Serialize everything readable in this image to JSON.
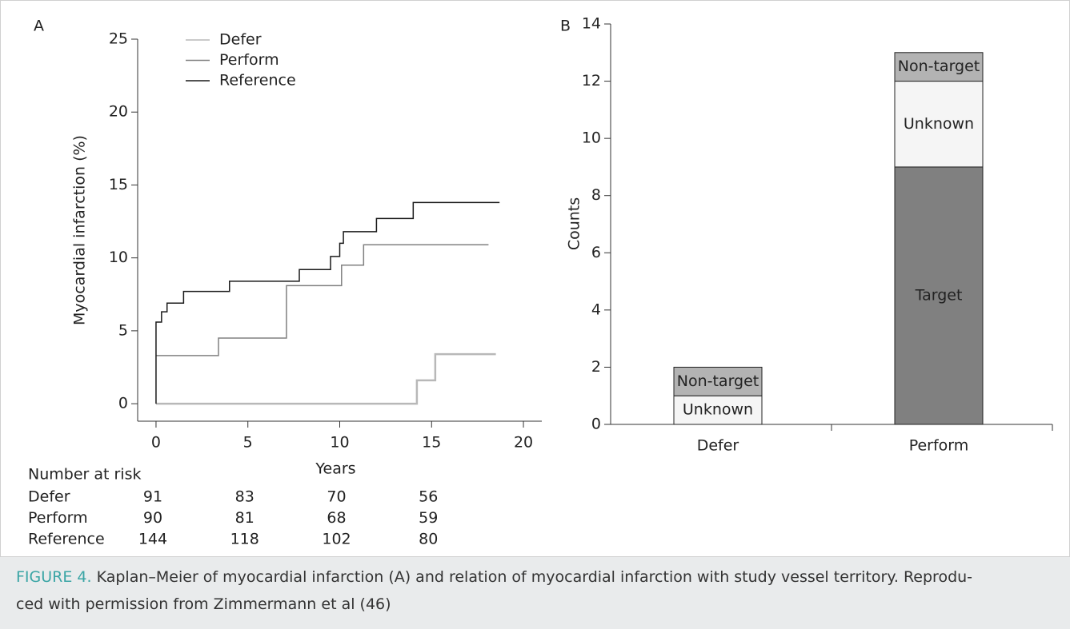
{
  "chart_data": [
    {
      "type": "line",
      "step": "post",
      "panel": "A",
      "x_label": "Years",
      "y_label": "Myocardial infarction (%)",
      "xlim": [
        -1,
        21
      ],
      "xticks": [
        0,
        5,
        10,
        15,
        20
      ],
      "ylim": [
        -1.2,
        25
      ],
      "yticks": [
        0,
        5,
        10,
        15,
        20,
        25
      ],
      "legend": "upper left",
      "series": [
        {
          "name": "Defer",
          "color": "#b8b8b8",
          "x": [
            0,
            14.2,
            15.2,
            18.5
          ],
          "values": [
            0,
            1.6,
            3.4,
            3.4
          ]
        },
        {
          "name": "Perform",
          "color": "#808080",
          "x": [
            0,
            3.4,
            7.1,
            10.1,
            11.3,
            18.1
          ],
          "values": [
            3.3,
            4.5,
            8.1,
            9.5,
            10.9,
            10.9
          ]
        },
        {
          "name": "Reference",
          "color": "#1a1a1a",
          "x": [
            0,
            0,
            0.3,
            0.6,
            1.5,
            4,
            7.8,
            9.5,
            10,
            10.2,
            12,
            14,
            18.7
          ],
          "values": [
            0,
            5.6,
            6.3,
            6.9,
            7.7,
            8.4,
            9.2,
            10.1,
            11,
            11.8,
            12.7,
            13.8,
            13.8
          ]
        }
      ],
      "risk_table": {
        "title": "Number at risk",
        "x": [
          0,
          5,
          10,
          15
        ],
        "rows": [
          {
            "name": "Defer",
            "color": "#b8b8b8",
            "values": [
              91,
              83,
              70,
              56
            ]
          },
          {
            "name": "Perform",
            "color": "#808080",
            "values": [
              90,
              81,
              68,
              59
            ]
          },
          {
            "name": "Reference",
            "color": "#1a1a1a",
            "values": [
              144,
              118,
              102,
              80
            ]
          }
        ]
      }
    },
    {
      "type": "stacked_bar",
      "panel": "B",
      "y_label": "Counts",
      "categories": [
        "Defer",
        "Perform"
      ],
      "ylim": [
        0,
        14
      ],
      "yticks": [
        0,
        2,
        4,
        6,
        8,
        10,
        12,
        14
      ],
      "series": [
        {
          "name": "Target",
          "color": "#808080",
          "values": [
            0,
            9
          ]
        },
        {
          "name": "Unknown",
          "color": "#f5f5f5",
          "values": [
            1,
            3
          ]
        },
        {
          "name": "Non-target",
          "color": "#b3b3b3",
          "values": [
            1,
            1
          ]
        }
      ]
    }
  ],
  "caption": {
    "label": "FIGURE 4.",
    "lines": [
      "Kaplan–Meier of myocardial infarction (A) and relation of myocardial infarction with study vessel territory. Reprodu-",
      "ced with permission from Zimmermann et al (46)"
    ]
  }
}
